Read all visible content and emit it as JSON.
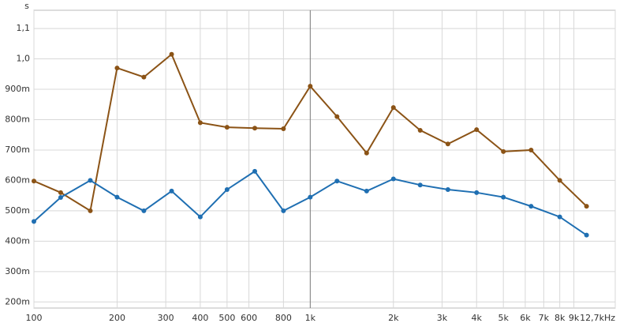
{
  "chart_data": {
    "type": "line",
    "y_unit": "s",
    "x": [
      100,
      125,
      160,
      200,
      250,
      315,
      400,
      500,
      630,
      800,
      1000,
      1250,
      1600,
      2000,
      2500,
      3150,
      4000,
      5000,
      6300,
      8000,
      10000
    ],
    "series": [
      {
        "color": "#8b5316",
        "values": [
          0.598,
          0.56,
          0.5,
          0.97,
          0.94,
          1.015,
          0.79,
          0.775,
          0.772,
          0.77,
          0.91,
          0.81,
          0.69,
          0.84,
          0.765,
          0.72,
          0.767,
          0.695,
          0.7,
          0.6,
          0.515
        ]
      },
      {
        "color": "#1f6fb2",
        "values": [
          0.465,
          0.544,
          0.6,
          0.545,
          0.5,
          0.565,
          0.48,
          0.57,
          0.63,
          0.5,
          0.545,
          0.598,
          0.565,
          0.605,
          0.585,
          0.57,
          0.56,
          0.545,
          0.515,
          0.48,
          0.42
        ]
      }
    ],
    "xscale": "log",
    "xlim": [
      100,
      12700
    ],
    "xticks": [
      {
        "value": 100,
        "label": "100"
      },
      {
        "value": 200,
        "label": "200"
      },
      {
        "value": 300,
        "label": "300"
      },
      {
        "value": 400,
        "label": "400"
      },
      {
        "value": 500,
        "label": "500"
      },
      {
        "value": 600,
        "label": "600"
      },
      {
        "value": 800,
        "label": "800"
      },
      {
        "value": 1000,
        "label": "1k"
      },
      {
        "value": 2000,
        "label": "2k"
      },
      {
        "value": 3000,
        "label": "3k"
      },
      {
        "value": 4000,
        "label": "4k"
      },
      {
        "value": 5000,
        "label": "5k"
      },
      {
        "value": 6000,
        "label": "6k"
      },
      {
        "value": 7000,
        "label": "7k"
      },
      {
        "value": 8000,
        "label": "8k"
      },
      {
        "value": 9000,
        "label": "9k"
      },
      {
        "value": 12700,
        "label": "12,7kHz"
      }
    ],
    "ylim": [
      0.18,
      1.16
    ],
    "yticks": [
      {
        "value": 0.2,
        "label": "200m"
      },
      {
        "value": 0.3,
        "label": "300m"
      },
      {
        "value": 0.4,
        "label": "400m"
      },
      {
        "value": 0.5,
        "label": "500m"
      },
      {
        "value": 0.6,
        "label": "600m"
      },
      {
        "value": 0.7,
        "label": "700m"
      },
      {
        "value": 0.8,
        "label": "800m"
      },
      {
        "value": 0.9,
        "label": "900m"
      },
      {
        "value": 1.0,
        "label": "1,0"
      },
      {
        "value": 1.1,
        "label": "1,1"
      }
    ],
    "grid": true
  }
}
